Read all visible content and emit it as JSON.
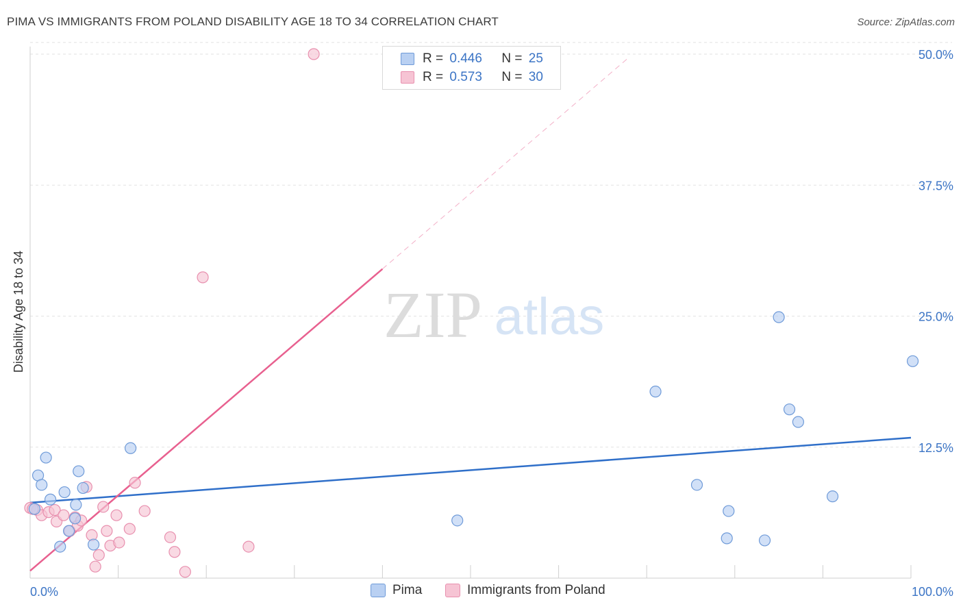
{
  "header": {
    "title": "PIMA VS IMMIGRANTS FROM POLAND DISABILITY AGE 18 TO 34 CORRELATION CHART",
    "source": "Source: ZipAtlas.com"
  },
  "legend": {
    "rows": [
      {
        "r_label": "R =",
        "r_value": "0.446",
        "n_label": "N =",
        "n_value": "25"
      },
      {
        "r_label": "R =",
        "r_value": "0.573",
        "n_label": "N =",
        "n_value": "30"
      }
    ]
  },
  "watermark": {
    "zip": "ZIP",
    "atlas": "atlas"
  },
  "colors": {
    "pima_fill": "#b9d0f2",
    "pima_stroke": "#6e9ad8",
    "pima_line": "#2f6fc9",
    "poland_fill": "#f6c4d4",
    "poland_stroke": "#e88fae",
    "poland_line": "#e8608f",
    "tick_label": "#3b74c5",
    "grid": "#e2e2e2"
  },
  "chart_data": {
    "type": "scatter",
    "title": "PIMA VS IMMIGRANTS FROM POLAND DISABILITY AGE 18 TO 34 CORRELATION CHART",
    "xlabel": "",
    "ylabel": "Disability Age 18 to 34",
    "xlim": [
      0,
      100
    ],
    "ylim": [
      0,
      50
    ],
    "x_tick_labels": [
      "0.0%",
      "100.0%"
    ],
    "y_ticks": [
      12.5,
      25.0,
      37.5,
      50.0
    ],
    "y_tick_labels": [
      "12.5%",
      "25.0%",
      "37.5%",
      "50.0%"
    ],
    "grid": "horizontal dashed",
    "legend_position": "bottom",
    "series": [
      {
        "name": "Pima",
        "r": 0.446,
        "n": 25,
        "points": [
          [
            0.5,
            6.6
          ],
          [
            0.9,
            9.8
          ],
          [
            1.3,
            8.9
          ],
          [
            1.8,
            11.5
          ],
          [
            2.3,
            7.5
          ],
          [
            3.4,
            3.0
          ],
          [
            3.9,
            8.2
          ],
          [
            4.4,
            4.5
          ],
          [
            5.1,
            5.7
          ],
          [
            5.2,
            7.0
          ],
          [
            5.5,
            10.2
          ],
          [
            6.0,
            8.6
          ],
          [
            7.2,
            3.2
          ],
          [
            11.4,
            12.4
          ],
          [
            48.5,
            5.5
          ],
          [
            71.0,
            17.8
          ],
          [
            75.7,
            8.9
          ],
          [
            79.1,
            3.8
          ],
          [
            79.3,
            6.4
          ],
          [
            85.0,
            24.9
          ],
          [
            83.4,
            3.6
          ],
          [
            86.2,
            16.1
          ],
          [
            87.2,
            14.9
          ],
          [
            91.1,
            7.8
          ],
          [
            100.2,
            20.7
          ]
        ],
        "trend": {
          "x0": 0,
          "y0": 7.2,
          "x1": 100,
          "y1": 13.4
        }
      },
      {
        "name": "Immigrants from Poland",
        "r": 0.573,
        "n": 30,
        "points": [
          [
            0.0,
            6.7
          ],
          [
            0.8,
            6.5
          ],
          [
            1.3,
            6.0
          ],
          [
            2.1,
            6.3
          ],
          [
            2.8,
            6.5
          ],
          [
            3.0,
            5.4
          ],
          [
            3.8,
            6.0
          ],
          [
            4.5,
            4.5
          ],
          [
            5.1,
            5.8
          ],
          [
            5.4,
            5.0
          ],
          [
            5.8,
            5.5
          ],
          [
            6.4,
            8.7
          ],
          [
            7.0,
            4.1
          ],
          [
            7.4,
            1.1
          ],
          [
            7.8,
            2.2
          ],
          [
            8.3,
            6.8
          ],
          [
            8.7,
            4.5
          ],
          [
            9.1,
            3.1
          ],
          [
            9.8,
            6.0
          ],
          [
            10.1,
            3.4
          ],
          [
            11.3,
            4.7
          ],
          [
            11.9,
            9.1
          ],
          [
            13.0,
            6.4
          ],
          [
            15.9,
            3.9
          ],
          [
            16.4,
            2.5
          ],
          [
            17.6,
            0.6
          ],
          [
            19.6,
            28.7
          ],
          [
            24.8,
            3.0
          ],
          [
            32.2,
            50.0
          ],
          [
            0.3,
            6.6
          ]
        ],
        "trend": {
          "x0": 0,
          "y0": 0.7,
          "x1": 40,
          "y1": 29.5
        },
        "trend_extension": {
          "x0": 40,
          "y0": 29.5,
          "x1": 68,
          "y1": 49.7
        }
      }
    ]
  },
  "bottom_legend": {
    "items": [
      "Pima",
      "Immigrants from Poland"
    ]
  }
}
